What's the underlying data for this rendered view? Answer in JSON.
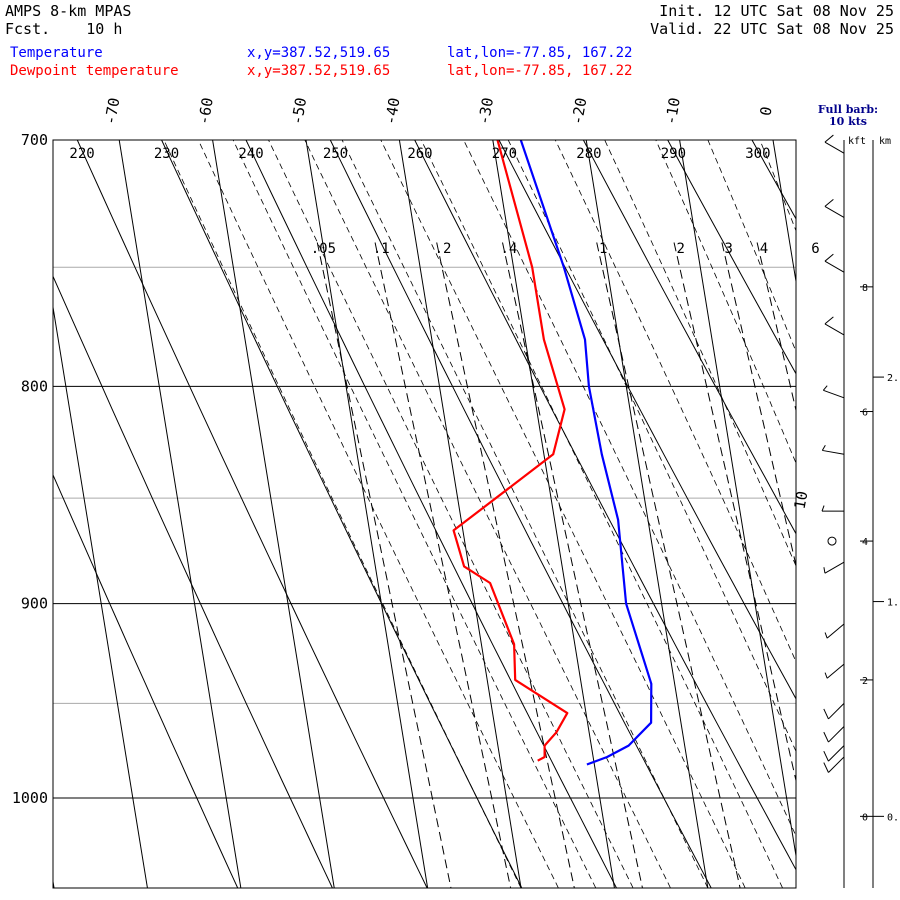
{
  "header": {
    "model": "AMPS 8-km MPAS",
    "fcst_label": "Fcst.",
    "fcst_value": "10 h",
    "init_label": "Init.",
    "init_value": "12 UTC Sat 08 Nov 25",
    "valid_label": "Valid.",
    "valid_value": "22 UTC Sat 08 Nov 25"
  },
  "legend": [
    {
      "name": "Temperature",
      "xy": "x,y=387.52,519.65",
      "latlon": "lat,lon=-77.85, 167.22",
      "color": "#0000ff"
    },
    {
      "name": "Dewpoint temperature",
      "xy": "x,y=387.52,519.65",
      "latlon": "lat,lon=-77.85, 167.22",
      "color": "#ff0000"
    }
  ],
  "barb_note": {
    "line1": "Full barb:",
    "line2": "10 kts",
    "kft": "kft",
    "km": "km"
  },
  "chart_data": {
    "type": "skewt",
    "pressure_range_hpa": [
      700,
      1050
    ],
    "pressure_labels": [
      "700",
      "800",
      "900",
      "1000"
    ],
    "pressure_lines": [
      700,
      750,
      800,
      850,
      900,
      950,
      1000
    ],
    "isotherm_labels": [
      "-70",
      "-60",
      "-50",
      "-40",
      "-30",
      "-20",
      "-10",
      "0",
      "10"
    ],
    "theta_labels": [
      "220",
      "230",
      "240",
      "250",
      "260",
      "270",
      "280",
      "290",
      "300"
    ],
    "mixing_ratio_labels": [
      ".05",
      ".1",
      ".2",
      ".4",
      "1",
      "2",
      "3",
      "4",
      "6"
    ],
    "temperature": {
      "name": "Temperature",
      "color": "#0000ff",
      "points": [
        [
          700,
          -27
        ],
        [
          750,
          -24.6
        ],
        [
          780,
          -23.6
        ],
        [
          800,
          -24
        ],
        [
          830,
          -23.8
        ],
        [
          860,
          -23.2
        ],
        [
          900,
          -23.8
        ],
        [
          940,
          -22.5
        ],
        [
          960,
          -23.2
        ],
        [
          972,
          -26
        ],
        [
          978,
          -28.5
        ],
        [
          982,
          -30.8
        ]
      ]
    },
    "dewpoint": {
      "name": "Dewpoint temperature",
      "color": "#ff0000",
      "points": [
        [
          700,
          -29.5
        ],
        [
          750,
          -28
        ],
        [
          780,
          -28
        ],
        [
          810,
          -27
        ],
        [
          830,
          -29
        ],
        [
          865,
          -41
        ],
        [
          882,
          -40.5
        ],
        [
          890,
          -38
        ],
        [
          920,
          -36.5
        ],
        [
          938,
          -37
        ],
        [
          955,
          -32
        ],
        [
          965,
          -33.5
        ],
        [
          972,
          -35
        ],
        [
          978,
          -35.2
        ],
        [
          980,
          -36
        ]
      ]
    },
    "height_kft": [
      {
        "label": "8",
        "p": 758
      },
      {
        "label": "6",
        "p": 811
      },
      {
        "label": "4",
        "p": 870
      },
      {
        "label": "2",
        "p": 938
      },
      {
        "label": "0",
        "p": 1010
      }
    ],
    "height_km": [
      {
        "label": "2.",
        "p": 796
      },
      {
        "label": "1.",
        "p": 899
      },
      {
        "label": "0.",
        "p": 1010
      }
    ],
    "wind_barbs": [
      {
        "p": 705,
        "dir": 300,
        "kts": 10
      },
      {
        "p": 730,
        "dir": 300,
        "kts": 10
      },
      {
        "p": 752,
        "dir": 300,
        "kts": 10
      },
      {
        "p": 778,
        "dir": 300,
        "kts": 10
      },
      {
        "p": 805,
        "dir": 290,
        "kts": 5
      },
      {
        "p": 830,
        "dir": 280,
        "kts": 5
      },
      {
        "p": 856,
        "dir": 270,
        "kts": 5
      },
      {
        "p": 870,
        "dir": 0,
        "kts": 0
      },
      {
        "p": 880,
        "dir": 240,
        "kts": 5
      },
      {
        "p": 910,
        "dir": 230,
        "kts": 5
      },
      {
        "p": 930,
        "dir": 230,
        "kts": 5
      },
      {
        "p": 950,
        "dir": 225,
        "kts": 10
      },
      {
        "p": 962,
        "dir": 225,
        "kts": 10
      },
      {
        "p": 972,
        "dir": 225,
        "kts": 10
      },
      {
        "p": 978,
        "dir": 225,
        "kts": 10
      }
    ]
  }
}
